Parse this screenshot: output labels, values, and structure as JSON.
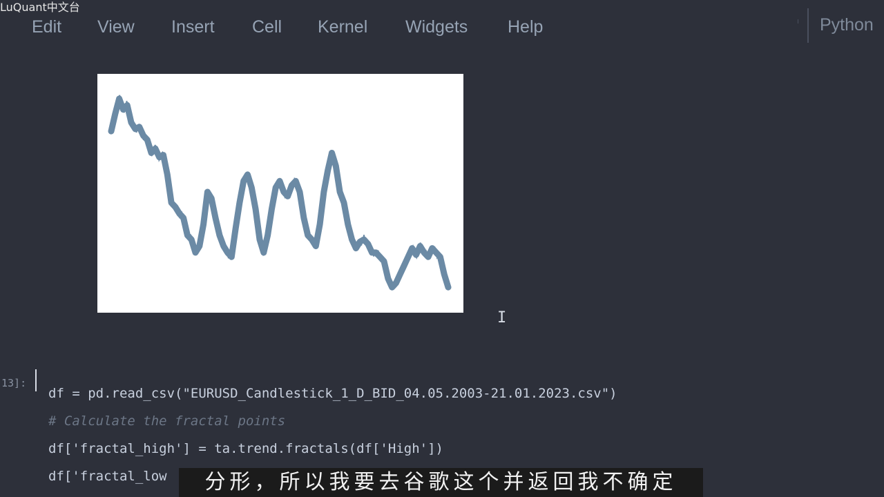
{
  "watermark": "LuQuant中文台",
  "menu": {
    "items": [
      "Edit",
      "View",
      "Insert",
      "Cell",
      "Kernel",
      "Widgets",
      "Help"
    ]
  },
  "kernel": {
    "name": "Python"
  },
  "output": {
    "chart_data": {
      "type": "line",
      "title": "",
      "xlabel": "",
      "ylabel": "",
      "axes_visible": false,
      "grid": false,
      "line_color": "#6b8aa5",
      "series": [
        {
          "values": [
            0.78,
            0.86,
            0.93,
            0.88,
            0.9,
            0.82,
            0.79,
            0.8,
            0.76,
            0.74,
            0.68,
            0.7,
            0.66,
            0.67,
            0.58,
            0.45,
            0.43,
            0.4,
            0.38,
            0.3,
            0.28,
            0.22,
            0.25,
            0.35,
            0.5,
            0.47,
            0.38,
            0.3,
            0.25,
            0.22,
            0.2,
            0.33,
            0.45,
            0.55,
            0.58,
            0.52,
            0.42,
            0.28,
            0.22,
            0.3,
            0.42,
            0.52,
            0.55,
            0.5,
            0.48,
            0.53,
            0.55,
            0.5,
            0.38,
            0.3,
            0.28,
            0.25,
            0.35,
            0.5,
            0.6,
            0.68,
            0.62,
            0.5,
            0.45,
            0.35,
            0.28,
            0.24,
            0.27,
            0.28,
            0.26,
            0.22,
            0.22,
            0.2,
            0.18,
            0.1,
            0.06,
            0.08,
            0.12,
            0.16,
            0.2,
            0.24,
            0.21,
            0.25,
            0.22,
            0.2,
            0.24,
            0.22,
            0.2,
            0.12,
            0.06
          ]
        }
      ],
      "ylim": [
        0,
        1
      ]
    }
  },
  "cell": {
    "prompt": "13]:",
    "lines": [
      "df = pd.read_csv(\"EURUSD_Candlestick_1_D_BID_04.05.2003-21.01.2023.csv\")",
      "# Calculate the fractal points",
      "df['fractal_high'] = ta.trend.fractals(df['High'])",
      "df['fractal_low"
    ]
  },
  "subtitle": "分形，所以我要去谷歌这个并返回我不确定",
  "cursor_glyph": "I"
}
